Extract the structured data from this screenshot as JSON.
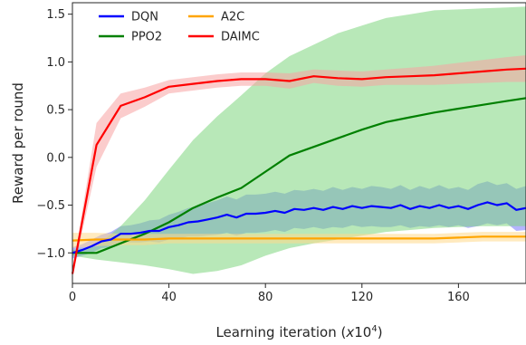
{
  "chart_data": {
    "type": "line",
    "xlabel": "Learning iteration (x10^4)",
    "xlabel_main": "Learning iteration (",
    "xlabel_x": "x",
    "xlabel_base": "10",
    "xlabel_exp": "4",
    "xlabel_close": ")",
    "ylabel": "Reward per round",
    "xlim": [
      0,
      188
    ],
    "ylim": [
      -1.32,
      1.62
    ],
    "xticks": [
      0,
      40,
      80,
      120,
      160
    ],
    "xtick_labels": [
      "0",
      "40",
      "80",
      "120",
      "160"
    ],
    "yticks": [
      -1.0,
      -0.5,
      0.0,
      0.5,
      1.0,
      1.5
    ],
    "ytick_labels": [
      "−1.0",
      "−0.5",
      "0.0",
      "0.5",
      "1.0",
      "1.5"
    ],
    "legend_position": "top-left",
    "series": [
      {
        "name": "DQN",
        "color": "#0000ff",
        "band_color": "#7777ff",
        "x": [
          0,
          4,
          8,
          12,
          16,
          20,
          24,
          28,
          32,
          36,
          40,
          44,
          48,
          52,
          56,
          60,
          64,
          68,
          72,
          76,
          80,
          84,
          88,
          92,
          96,
          100,
          104,
          108,
          112,
          116,
          120,
          124,
          128,
          132,
          136,
          140,
          144,
          148,
          152,
          156,
          160,
          164,
          168,
          172,
          176,
          180,
          184,
          188
        ],
        "values": [
          -1.0,
          -0.97,
          -0.93,
          -0.88,
          -0.86,
          -0.8,
          -0.8,
          -0.79,
          -0.77,
          -0.77,
          -0.73,
          -0.71,
          -0.68,
          -0.67,
          -0.65,
          -0.63,
          -0.6,
          -0.63,
          -0.59,
          -0.59,
          -0.58,
          -0.56,
          -0.58,
          -0.54,
          -0.55,
          -0.53,
          -0.55,
          -0.52,
          -0.54,
          -0.51,
          -0.53,
          -0.51,
          -0.52,
          -0.53,
          -0.5,
          -0.54,
          -0.51,
          -0.53,
          -0.5,
          -0.53,
          -0.51,
          -0.54,
          -0.5,
          -0.47,
          -0.5,
          -0.48,
          -0.55,
          -0.53
        ],
        "upper": [
          -0.94,
          -0.91,
          -0.86,
          -0.81,
          -0.78,
          -0.72,
          -0.71,
          -0.69,
          -0.66,
          -0.65,
          -0.6,
          -0.57,
          -0.53,
          -0.51,
          -0.48,
          -0.45,
          -0.41,
          -0.44,
          -0.39,
          -0.39,
          -0.38,
          -0.36,
          -0.38,
          -0.34,
          -0.35,
          -0.33,
          -0.35,
          -0.31,
          -0.34,
          -0.31,
          -0.33,
          -0.3,
          -0.31,
          -0.33,
          -0.29,
          -0.34,
          -0.3,
          -0.33,
          -0.29,
          -0.33,
          -0.31,
          -0.34,
          -0.28,
          -0.25,
          -0.29,
          -0.27,
          -0.33,
          -0.3
        ],
        "lower": [
          -1.06,
          -1.03,
          -1.0,
          -0.95,
          -0.94,
          -0.88,
          -0.89,
          -0.89,
          -0.88,
          -0.89,
          -0.86,
          -0.85,
          -0.83,
          -0.83,
          -0.82,
          -0.81,
          -0.79,
          -0.82,
          -0.79,
          -0.79,
          -0.78,
          -0.76,
          -0.78,
          -0.74,
          -0.75,
          -0.73,
          -0.75,
          -0.73,
          -0.74,
          -0.71,
          -0.73,
          -0.72,
          -0.73,
          -0.73,
          -0.71,
          -0.74,
          -0.72,
          -0.73,
          -0.71,
          -0.73,
          -0.71,
          -0.74,
          -0.72,
          -0.69,
          -0.71,
          -0.69,
          -0.77,
          -0.76
        ]
      },
      {
        "name": "PPO2",
        "color": "#008000",
        "band_color": "#7dd67d",
        "x": [
          0,
          10,
          20,
          30,
          40,
          50,
          60,
          70,
          80,
          90,
          100,
          110,
          120,
          130,
          140,
          150,
          160,
          170,
          180,
          188
        ],
        "values": [
          -1.0,
          -1.0,
          -0.9,
          -0.8,
          -0.68,
          -0.53,
          -0.42,
          -0.32,
          -0.15,
          0.02,
          0.11,
          0.2,
          0.29,
          0.37,
          0.42,
          0.47,
          0.51,
          0.55,
          0.59,
          0.62
        ],
        "upper": [
          -0.97,
          -0.93,
          -0.72,
          -0.45,
          -0.13,
          0.18,
          0.43,
          0.65,
          0.88,
          1.06,
          1.18,
          1.3,
          1.38,
          1.46,
          1.5,
          1.54,
          1.55,
          1.56,
          1.57,
          1.58
        ],
        "lower": [
          -1.03,
          -1.07,
          -1.1,
          -1.13,
          -1.17,
          -1.22,
          -1.19,
          -1.13,
          -1.03,
          -0.95,
          -0.9,
          -0.86,
          -0.82,
          -0.78,
          -0.76,
          -0.74,
          -0.73,
          -0.72,
          -0.72,
          -0.72
        ]
      },
      {
        "name": "A2C",
        "color": "#ffa500",
        "band_color": "#ffd98a",
        "x": [
          0,
          10,
          20,
          30,
          40,
          50,
          60,
          70,
          80,
          90,
          100,
          110,
          120,
          130,
          140,
          150,
          160,
          170,
          180,
          188
        ],
        "values": [
          -0.87,
          -0.86,
          -0.86,
          -0.86,
          -0.85,
          -0.85,
          -0.85,
          -0.85,
          -0.85,
          -0.85,
          -0.85,
          -0.85,
          -0.85,
          -0.85,
          -0.85,
          -0.85,
          -0.84,
          -0.83,
          -0.83,
          -0.83
        ],
        "upper": [
          -0.79,
          -0.79,
          -0.8,
          -0.8,
          -0.8,
          -0.8,
          -0.8,
          -0.8,
          -0.8,
          -0.8,
          -0.8,
          -0.8,
          -0.8,
          -0.8,
          -0.8,
          -0.8,
          -0.79,
          -0.78,
          -0.78,
          -0.78
        ],
        "lower": [
          -0.95,
          -0.93,
          -0.92,
          -0.92,
          -0.9,
          -0.9,
          -0.9,
          -0.9,
          -0.9,
          -0.9,
          -0.9,
          -0.9,
          -0.9,
          -0.9,
          -0.9,
          -0.9,
          -0.89,
          -0.88,
          -0.88,
          -0.88
        ]
      },
      {
        "name": "DAIMC",
        "color": "#ff0000",
        "band_color": "#f7a3a3",
        "x": [
          0,
          10,
          20,
          30,
          40,
          50,
          60,
          70,
          80,
          90,
          100,
          110,
          120,
          130,
          140,
          150,
          160,
          170,
          180,
          188
        ],
        "values": [
          -1.22,
          0.13,
          0.54,
          0.63,
          0.74,
          0.77,
          0.8,
          0.82,
          0.82,
          0.8,
          0.85,
          0.83,
          0.82,
          0.84,
          0.85,
          0.86,
          0.88,
          0.9,
          0.92,
          0.93
        ],
        "upper": [
          -1.2,
          0.36,
          0.67,
          0.73,
          0.81,
          0.84,
          0.87,
          0.89,
          0.89,
          0.88,
          0.92,
          0.91,
          0.9,
          0.92,
          0.94,
          0.96,
          0.99,
          1.02,
          1.05,
          1.07
        ],
        "lower": [
          -1.24,
          -0.1,
          0.41,
          0.53,
          0.67,
          0.7,
          0.73,
          0.75,
          0.75,
          0.72,
          0.78,
          0.75,
          0.74,
          0.76,
          0.76,
          0.76,
          0.77,
          0.78,
          0.79,
          0.79
        ]
      }
    ]
  }
}
